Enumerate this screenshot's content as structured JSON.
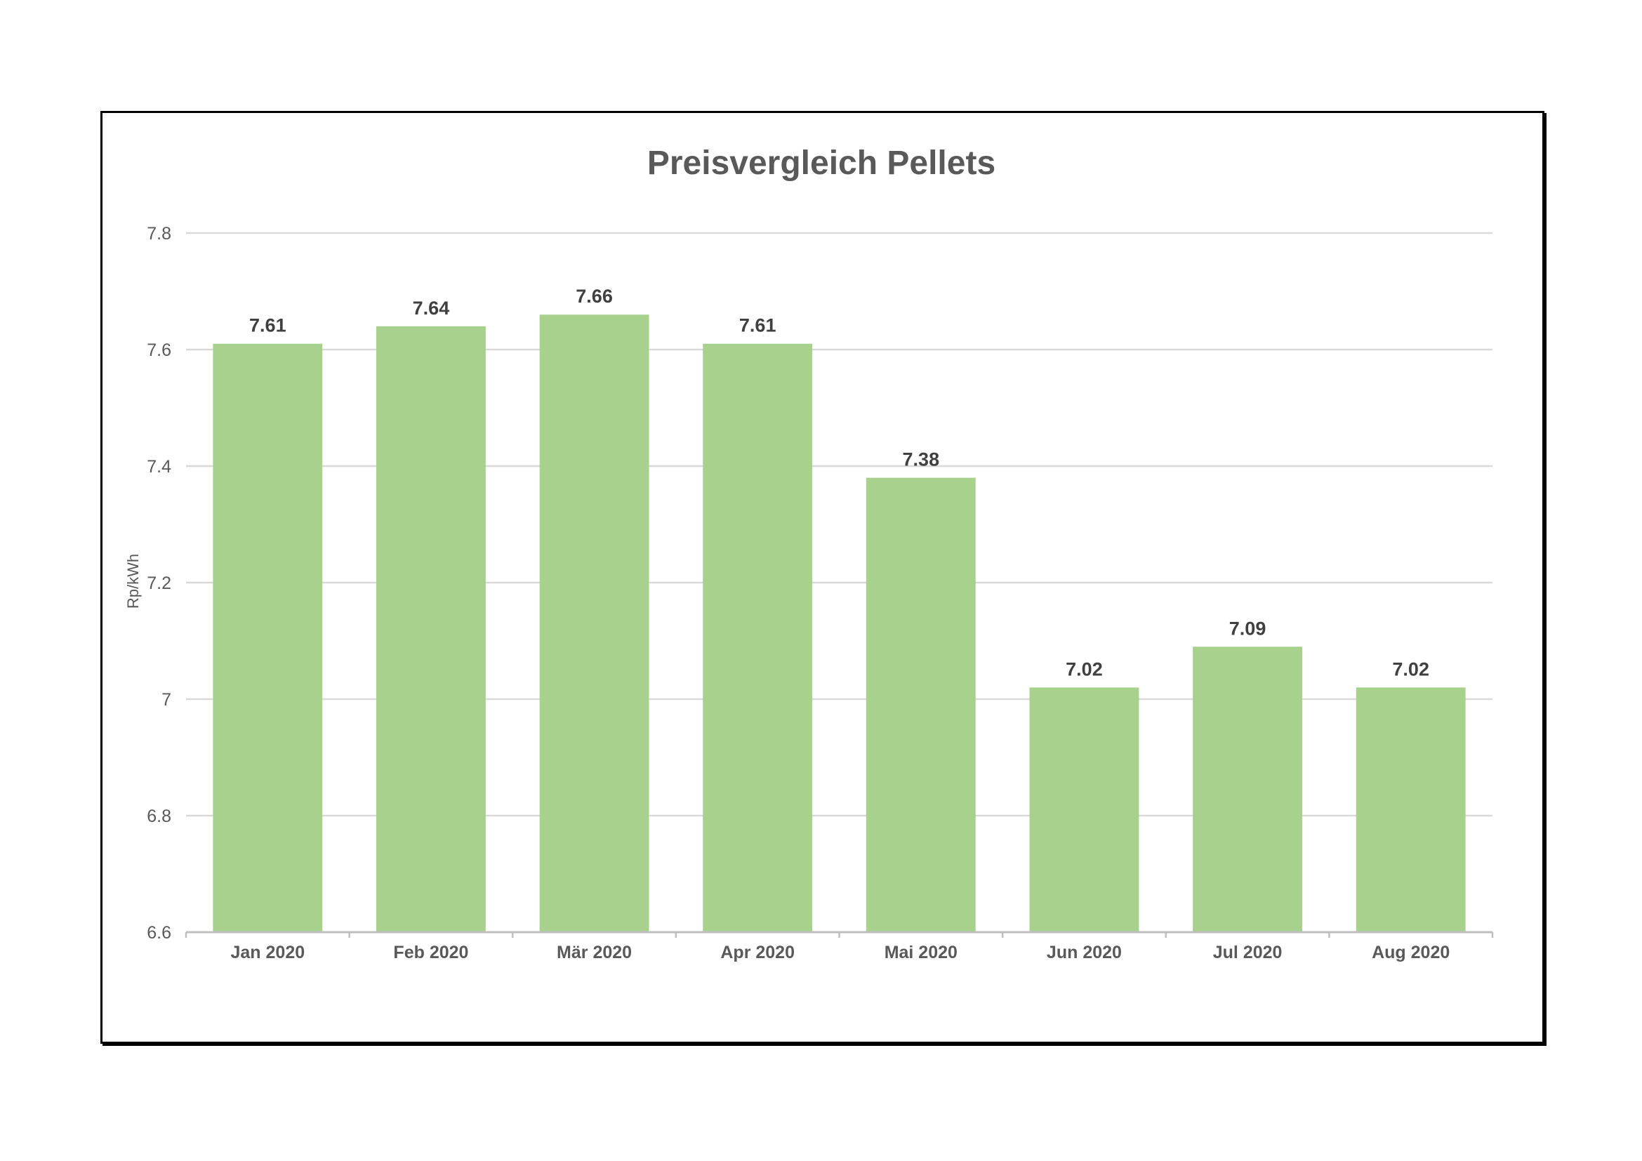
{
  "chart_data": {
    "type": "bar",
    "title": "Preisvergleich Pellets",
    "xlabel": "",
    "ylabel": "Rp/kWh",
    "categories": [
      "Jan 2020",
      "Feb 2020",
      "Mär 2020",
      "Apr 2020",
      "Mai 2020",
      "Jun 2020",
      "Jul 2020",
      "Aug 2020"
    ],
    "values": [
      7.61,
      7.64,
      7.66,
      7.61,
      7.38,
      7.02,
      7.09,
      7.02
    ],
    "value_labels": [
      "7.61",
      "7.64",
      "7.66",
      "7.61",
      "7.38",
      "7.02",
      "7.09",
      "7.02"
    ],
    "ylim": [
      6.6,
      7.8
    ],
    "yticks": [
      6.6,
      6.8,
      7,
      7.2,
      7.4,
      7.6,
      7.8
    ],
    "ytick_labels": [
      "6.6",
      "6.8",
      "7",
      "7.2",
      "7.4",
      "7.6",
      "7.8"
    ],
    "grid": true,
    "legend": "none",
    "colors": {
      "bar": "#A9D18E",
      "grid": "#D9D9D9",
      "axis": "#BFBFBF",
      "title": "#595959",
      "value_label": "#404040"
    }
  }
}
